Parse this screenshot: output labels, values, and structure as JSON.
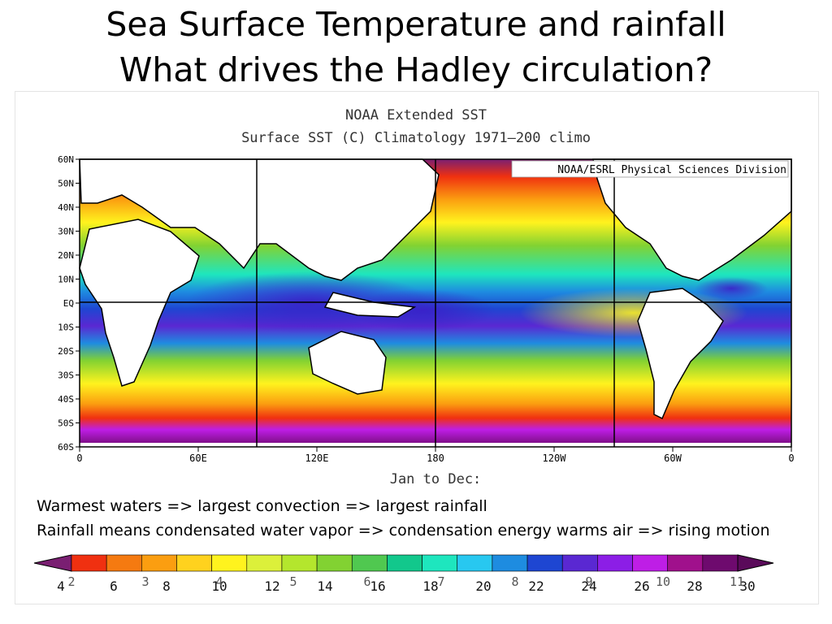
{
  "slide": {
    "title_line1": "Sea Surface Temperature and rainfall",
    "title_line2": "What drives the Hadley circulation?"
  },
  "map": {
    "title_line1": "NOAA Extended SST",
    "title_line2": "Surface SST (C) Climatology 1971—200 climo",
    "credit": "NOAA/ESRL Physical Sciences Division",
    "period_label": "Jan to Dec:",
    "lat_labels": [
      "60N",
      "50N",
      "40N",
      "30N",
      "20N",
      "10N",
      "EQ",
      "10S",
      "20S",
      "30S",
      "40S",
      "50S",
      "60S"
    ],
    "lon_labels": [
      "0",
      "60E",
      "120E",
      "180",
      "120W",
      "60W",
      "0"
    ]
  },
  "text": {
    "line1": "Warmest waters => largest convection => largest rainfall",
    "line2": "Rainfall means condensated water vapor => condensation energy warms air => rising motion"
  },
  "colorbar": {
    "colors": [
      "#7a1f72",
      "#f03010",
      "#f57a10",
      "#fb9e10",
      "#ffd21e",
      "#fff31e",
      "#dcf03a",
      "#b4e62d",
      "#82d232",
      "#50c850",
      "#12c88c",
      "#1ee6be",
      "#28c8f0",
      "#1e8ce0",
      "#1e46d2",
      "#5a28d2",
      "#8c1ee6",
      "#be1ee6",
      "#a0108c",
      "#6e0a6e",
      "#5a0a5a"
    ],
    "labels_celsius": [
      "4",
      "6",
      "8",
      "10",
      "12",
      "14",
      "16",
      "18",
      "20",
      "22",
      "24",
      "26",
      "28",
      "30"
    ],
    "labels_index": [
      "2",
      "3",
      "4",
      "5",
      "6",
      "7",
      "8",
      "9",
      "10",
      "11"
    ]
  }
}
